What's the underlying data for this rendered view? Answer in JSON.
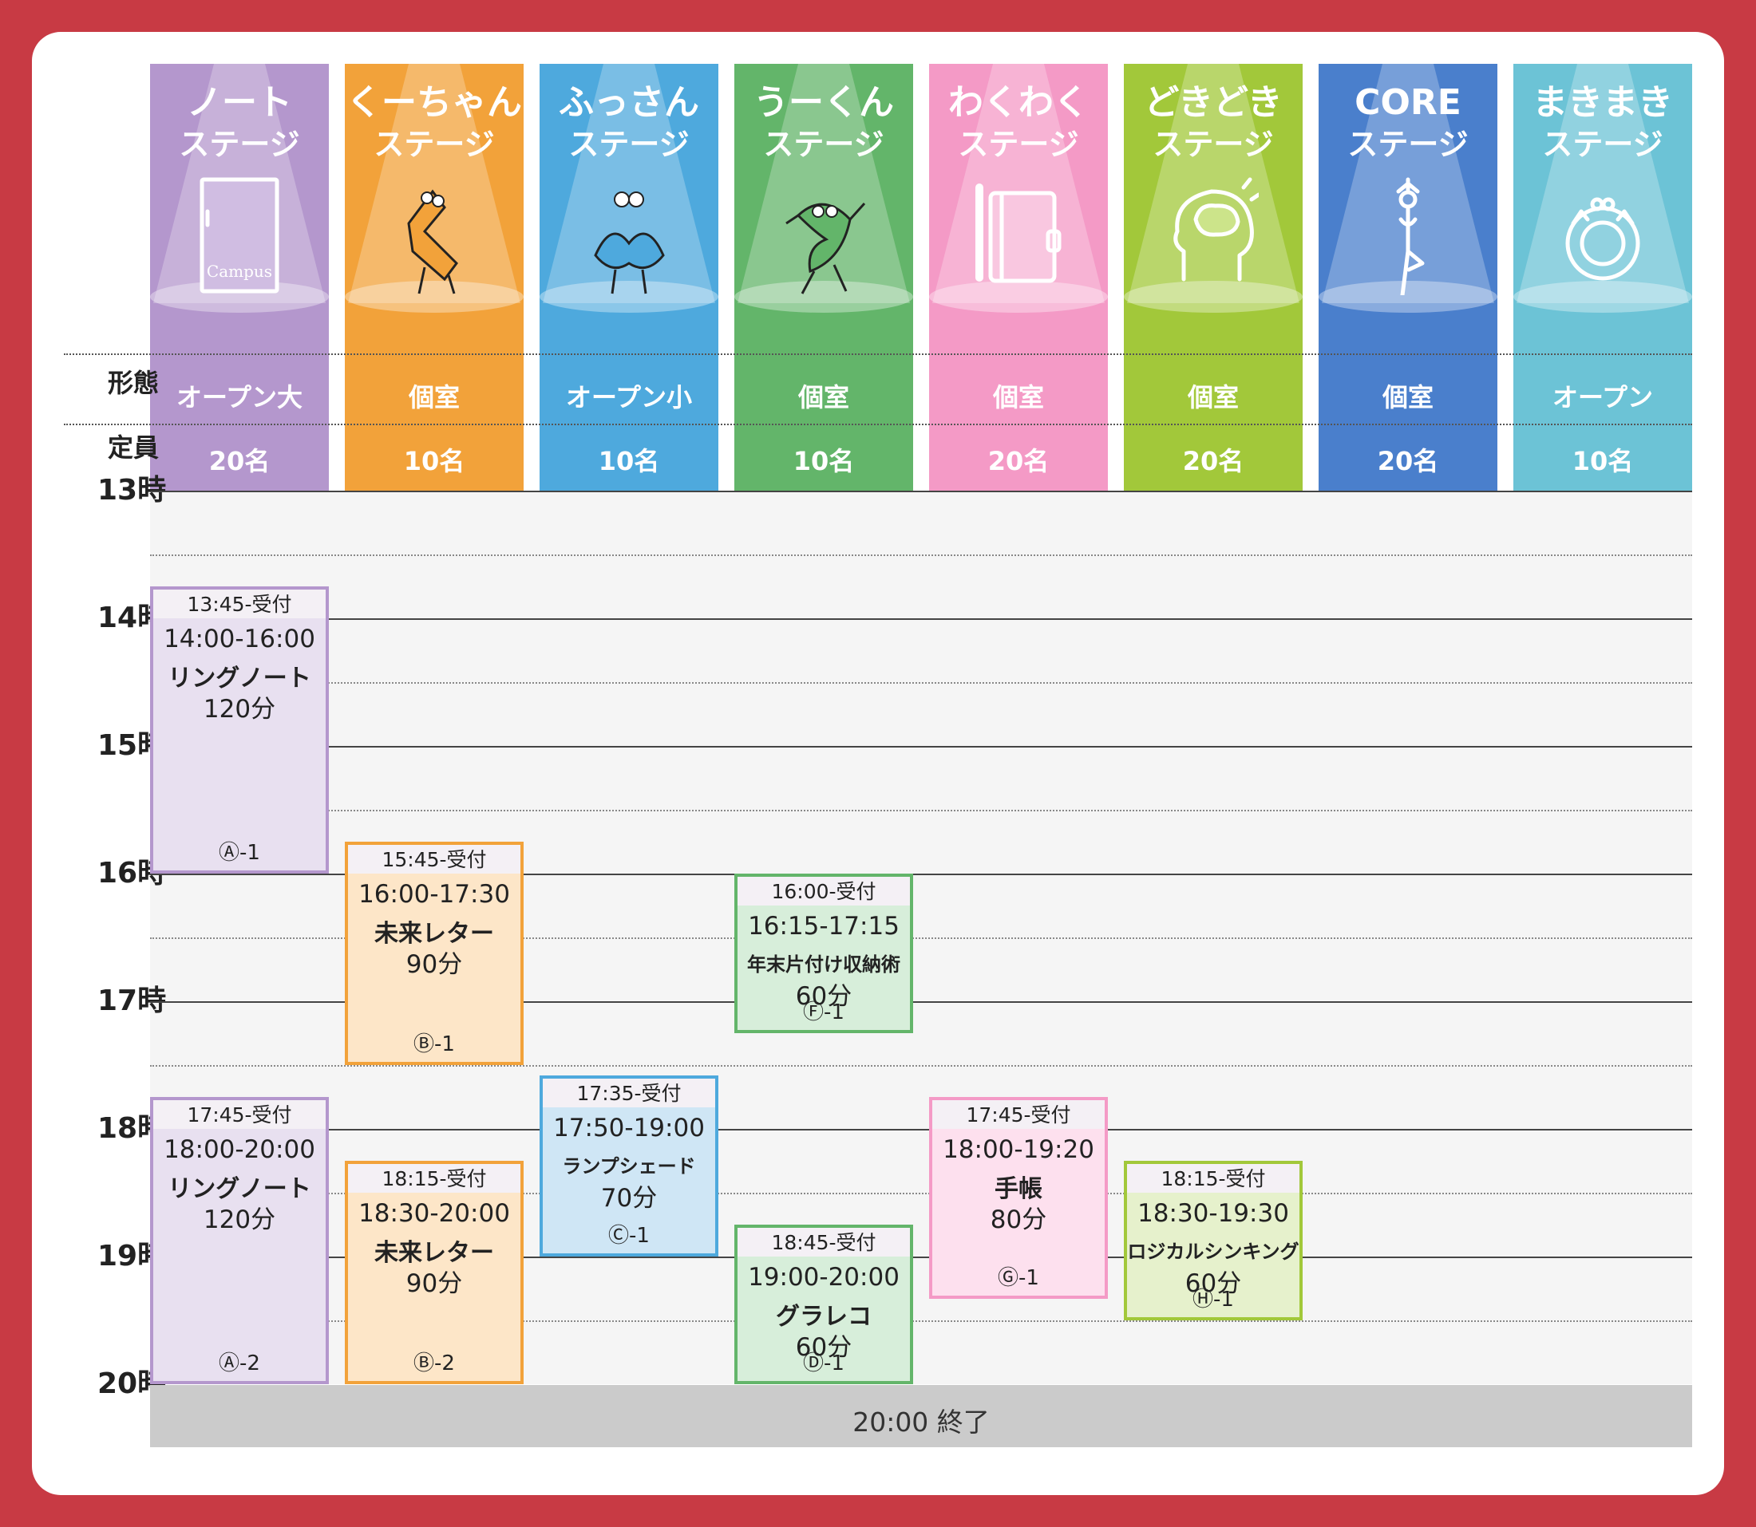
{
  "rows": {
    "format_label": "形態",
    "capacity_label": "定員"
  },
  "stages": [
    {
      "title": "ノート",
      "subtitle": "ステージ",
      "format": "オープン大",
      "capacity": "20名",
      "icon": "campus-notebook-icon",
      "color": "#b497cd",
      "color_light": "#d0bde2",
      "icon_label": "Campus"
    },
    {
      "title": "くーちゃん",
      "subtitle": "ステージ",
      "format": "個室",
      "capacity": "10名",
      "icon": "ku-character-icon",
      "color": "#f2a23a",
      "color_light": "#f7c987"
    },
    {
      "title": "ふっさん",
      "subtitle": "ステージ",
      "format": "オープン小",
      "capacity": "10名",
      "icon": "fu-character-icon",
      "color": "#4ea9dd",
      "color_light": "#9ccff0"
    },
    {
      "title": "うーくん",
      "subtitle": "ステージ",
      "format": "個室",
      "capacity": "10名",
      "icon": "u-character-icon",
      "color": "#63b56a",
      "color_light": "#a8d8a9"
    },
    {
      "title": "わくわく",
      "subtitle": "ステージ",
      "format": "個室",
      "capacity": "20名",
      "icon": "planner-notebook-icon",
      "color": "#f49ac6",
      "color_light": "#f9c7e0"
    },
    {
      "title": "どきどき",
      "subtitle": "ステージ",
      "format": "個室",
      "capacity": "20名",
      "icon": "brain-head-icon",
      "color": "#a2c83a",
      "color_light": "#cce48a"
    },
    {
      "title": "CORE",
      "subtitle": "ステージ",
      "format": "個室",
      "capacity": "20名",
      "icon": "yoga-pose-icon",
      "color": "#4a7fcc",
      "color_light": "#91b3e4"
    },
    {
      "title": "まきまき",
      "subtitle": "ステージ",
      "format": "オープン",
      "capacity": "10名",
      "icon": "wreath-icon",
      "color": "#6cc3d6",
      "color_light": "#aee0ea"
    }
  ],
  "hours": [
    "13時",
    "14時",
    "15時",
    "16時",
    "17時",
    "18時",
    "19時",
    "20時"
  ],
  "end_label": "20:00 終了",
  "sessions": [
    {
      "stage": 0,
      "recept": "13:45-受付",
      "time": "14:00-16:00",
      "title": "リングノート",
      "duration": "120分",
      "code": "Ⓐ-1",
      "border": "#b497cd",
      "fill": "#e8e0f0"
    },
    {
      "stage": 0,
      "recept": "17:45-受付",
      "time": "18:00-20:00",
      "title": "リングノート",
      "duration": "120分",
      "code": "Ⓐ-2",
      "border": "#b497cd",
      "fill": "#e8e0f0"
    },
    {
      "stage": 1,
      "recept": "15:45-受付",
      "time": "16:00-17:30",
      "title": "未来レター",
      "duration": "90分",
      "code": "Ⓑ-1",
      "border": "#f2a23a",
      "fill": "#fde6c8"
    },
    {
      "stage": 1,
      "recept": "18:15-受付",
      "time": "18:30-20:00",
      "title": "未来レター",
      "duration": "90分",
      "code": "Ⓑ-2",
      "border": "#f2a23a",
      "fill": "#fde6c8"
    },
    {
      "stage": 2,
      "recept": "17:35-受付",
      "time": "17:50-19:00",
      "title": "ランプシェード",
      "duration": "70分",
      "code": "Ⓒ-1",
      "border": "#4ea9dd",
      "fill": "#cfe6f5"
    },
    {
      "stage": 3,
      "recept": "16:00-受付",
      "time": "16:15-17:15",
      "title": "年末片付け収納術",
      "duration": "60分",
      "code": "Ⓕ-1",
      "border": "#63b56a",
      "fill": "#d7eeda"
    },
    {
      "stage": 3,
      "recept": "18:45-受付",
      "time": "19:00-20:00",
      "title": "グラレコ",
      "duration": "60分",
      "code": "Ⓓ-1",
      "border": "#63b56a",
      "fill": "#d7eeda"
    },
    {
      "stage": 4,
      "recept": "17:45-受付",
      "time": "18:00-19:20",
      "title": "手帳",
      "duration": "80分",
      "code": "Ⓖ-1",
      "border": "#f49ac6",
      "fill": "#fde0ee"
    },
    {
      "stage": 5,
      "recept": "18:15-受付",
      "time": "18:30-19:30",
      "title": "ロジカルシンキング",
      "duration": "60分",
      "code": "Ⓗ-1",
      "border": "#a2c83a",
      "fill": "#e6f1cc"
    }
  ]
}
